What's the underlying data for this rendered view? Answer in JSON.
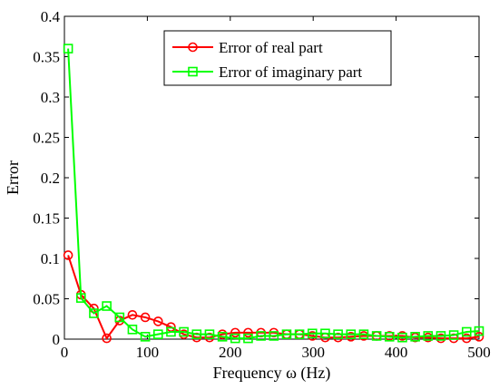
{
  "chart_data": {
    "type": "line",
    "title": "",
    "xlabel": "Frequency  ω (Hz)",
    "ylabel": "Error",
    "xlim": [
      0,
      500
    ],
    "ylim": [
      0,
      0.4
    ],
    "xticks": [
      0,
      100,
      200,
      300,
      400,
      500
    ],
    "xtick_labels": [
      "0",
      "100",
      "200",
      "300",
      "400",
      "500"
    ],
    "yticks": [
      0,
      0.05,
      0.1,
      0.15,
      0.2,
      0.25,
      0.3,
      0.35,
      0.4
    ],
    "ytick_labels": [
      "0",
      "0.05",
      "0.1",
      "0.15",
      "0.2",
      "0.25",
      "0.3",
      "0.35",
      "0.4"
    ],
    "grid": false,
    "legend_position": "top-right",
    "x": [
      4.5,
      20,
      35.5,
      51,
      66.5,
      82,
      97.5,
      113,
      128.5,
      144,
      159.5,
      175,
      190.5,
      206,
      221.5,
      237,
      252.5,
      268,
      283.5,
      299,
      314.5,
      330,
      345.5,
      361,
      376.5,
      392,
      407.5,
      423,
      438.5,
      454,
      469.5,
      485,
      500
    ],
    "series": [
      {
        "name": "Error of real part",
        "color": "#ff0000",
        "marker": "circle",
        "values": [
          0.104,
          0.055,
          0.038,
          0.001,
          0.023,
          0.03,
          0.027,
          0.022,
          0.015,
          0.006,
          0.002,
          0.002,
          0.006,
          0.008,
          0.008,
          0.008,
          0.008,
          0.006,
          0.006,
          0.004,
          0.002,
          0.002,
          0.003,
          0.004,
          0.004,
          0.004,
          0.004,
          0.002,
          0.002,
          0.001,
          0.001,
          0.001,
          0.003
        ]
      },
      {
        "name": "Error of imaginary part",
        "color": "#00ff00",
        "marker": "square",
        "values": [
          0.36,
          0.051,
          0.032,
          0.041,
          0.027,
          0.012,
          0.003,
          0.006,
          0.009,
          0.009,
          0.006,
          0.006,
          0.003,
          0.001,
          0.001,
          0.004,
          0.004,
          0.006,
          0.006,
          0.007,
          0.007,
          0.006,
          0.006,
          0.006,
          0.004,
          0.003,
          0.002,
          0.003,
          0.004,
          0.004,
          0.005,
          0.009,
          0.01
        ]
      }
    ]
  }
}
